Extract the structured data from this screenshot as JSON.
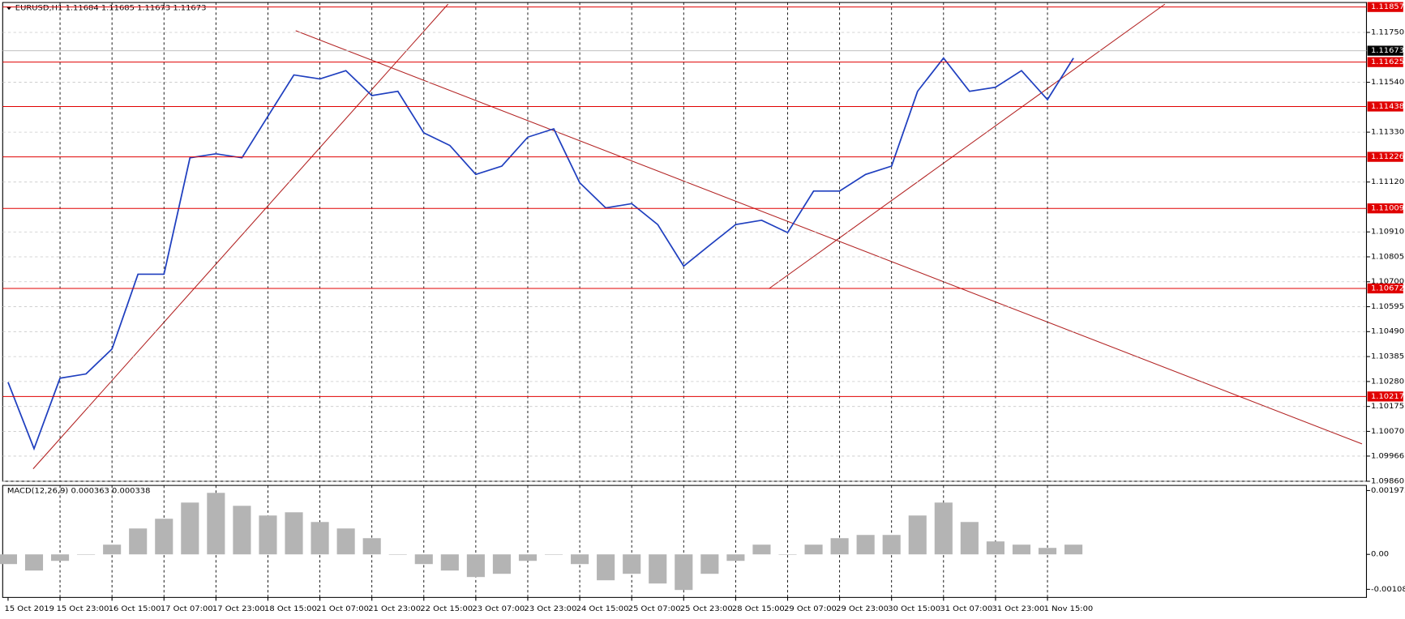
{
  "chart_data": [
    {
      "type": "line",
      "title": "EURUSD,H1  1.11684 1.11685 1.11673 1.11673",
      "categories": [
        "15 Oct 2019",
        null,
        "15 Oct 23:00",
        null,
        "16 Oct 15:00",
        null,
        "17 Oct 07:00",
        null,
        "17 Oct 23:00",
        null,
        "18 Oct 15:00",
        null,
        "21 Oct 07:00",
        null,
        "21 Oct 23:00",
        null,
        "22 Oct 15:00",
        null,
        "23 Oct 07:00",
        null,
        "23 Oct 23:00",
        null,
        "24 Oct 15:00",
        null,
        "25 Oct 07:00",
        null,
        "25 Oct 23:00",
        null,
        "28 Oct 15:00",
        null,
        "29 Oct 07:00",
        null,
        "29 Oct 23:00",
        null,
        "30 Oct 15:00",
        null,
        "31 Oct 07:00",
        null,
        "31 Oct 23:00",
        null,
        "1 Nov 15:00",
        null
      ],
      "values": [
        1.10277,
        1.09997,
        1.10294,
        1.10312,
        1.10417,
        1.10732,
        1.10732,
        1.11222,
        1.11239,
        1.11222,
        1.11397,
        1.11571,
        1.11554,
        1.11589,
        1.11484,
        1.11502,
        1.11327,
        1.11274,
        1.11152,
        1.11187,
        1.11309,
        1.11344,
        1.11117,
        1.11011,
        1.11029,
        1.10941,
        1.10766,
        1.10854,
        1.10941,
        1.10959,
        1.10907,
        1.11082,
        1.11082,
        1.11152,
        1.11187,
        1.11502,
        1.11642,
        1.11502,
        1.11519,
        1.11589,
        1.11467,
        1.11642
      ],
      "color": "#1f3fbf",
      "ylim": [
        1.0986,
        1.11876
      ],
      "yticks": [
        {
          "value": 1.1175,
          "label": "1.11750"
        },
        {
          "value": 1.1154,
          "label": "1.11540"
        },
        {
          "value": 1.1133,
          "label": "1.11330"
        },
        {
          "value": 1.1112,
          "label": "1.11120"
        },
        {
          "value": 1.1091,
          "label": "1.10910"
        },
        1.10805,
        {
          "value": 1.107,
          "label": "1.10700"
        },
        1.10595,
        {
          "value": 1.1049,
          "label": "1.10490"
        },
        1.10385,
        {
          "value": 1.1028,
          "label": "1.10280"
        },
        1.10175,
        {
          "value": 1.1007,
          "label": "1.10070"
        },
        1.09966,
        {
          "value": 1.0986,
          "label": "1.09860"
        }
      ],
      "levels": [
        1.11857,
        1.11625,
        1.11438,
        1.11226,
        1.11009,
        1.10672,
        1.10217
      ],
      "level_color": "#e00000",
      "last_price": 1.11673,
      "grid": true
    },
    {
      "type": "bar",
      "title": "MACD(12,26,9) 0.000363 0.000338",
      "values": [
        -0.0003,
        -0.0005,
        -0.0002,
        0.0,
        0.0003,
        0.0008,
        0.0011,
        0.0016,
        0.0019,
        0.0015,
        0.0012,
        0.0013,
        0.001,
        0.0008,
        0.0005,
        0.0,
        -0.0003,
        -0.0005,
        -0.0007,
        -0.0006,
        -0.0002,
        0.0,
        -0.0003,
        -0.0008,
        -0.0006,
        -0.0009,
        -0.0011,
        -0.0006,
        -0.0002,
        0.0003,
        0.0,
        0.0003,
        0.0005,
        0.0006,
        0.0006,
        0.0012,
        0.0016,
        0.001,
        0.0004,
        0.0003,
        0.0002,
        0.0003
      ],
      "color": "#b4b4b4",
      "ylim": [
        -0.00133,
        0.00213
      ],
      "yticks": [
        0.001972,
        {
          "value": 0,
          "label": "0.00"
        },
        -0.00108
      ]
    }
  ]
}
